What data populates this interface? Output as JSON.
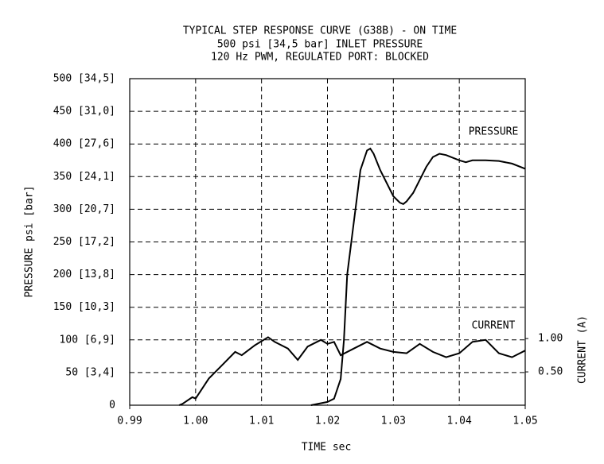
{
  "chart_data": {
    "type": "line",
    "title": "TYPICAL STEP RESPONSE CURVE (G38B) - ON TIME",
    "subtitle": [
      "500 psi [34,5 bar] INLET PRESSURE",
      "120 Hz PWM, REGULATED PORT: BLOCKED"
    ],
    "x_label": "TIME sec",
    "y_label": "PRESSURE psi [bar]",
    "y2_label": "CURRENT (A)",
    "xlim": [
      0.99,
      1.05
    ],
    "xticks": [
      0.99,
      {
        "value": 1,
        "label": "1.00"
      },
      1.01,
      1.02,
      1.03,
      1.04,
      1.05
    ],
    "ylim": [
      0,
      500
    ],
    "yticks": [
      0,
      {
        "value": 50,
        "label": "50 [3,4]"
      },
      {
        "value": 100,
        "label": "100 [6,9]"
      },
      {
        "value": 150,
        "label": "150 [10,3]"
      },
      {
        "value": 200,
        "label": "200 [13,8]"
      },
      {
        "value": 250,
        "label": "250 [17,2]"
      },
      {
        "value": 300,
        "label": "300 [20,7]"
      },
      {
        "value": 350,
        "label": "350 [24,1]"
      },
      {
        "value": 400,
        "label": "400 [27,6]"
      },
      {
        "value": 450,
        "label": "450 [31,0]"
      },
      {
        "value": 500,
        "label": "500 [34,5]"
      }
    ],
    "y2lim": [
      0,
      4.9
    ],
    "y2ticks": [
      {
        "value": 0.5,
        "label": "0.50"
      },
      {
        "value": 1,
        "label": "1.00"
      }
    ],
    "grid": true,
    "series": [
      {
        "name": "PRESSURE",
        "color": "#000000",
        "x": [
          1.0175,
          1.02,
          1.021,
          1.022,
          1.0225,
          1.023,
          1.024,
          1.025,
          1.026,
          1.0265,
          1.027,
          1.028,
          1.03,
          1.031,
          1.0315,
          1.032,
          1.033,
          1.035,
          1.036,
          1.037,
          1.038,
          1.04,
          1.041,
          1.042,
          1.044,
          1.046,
          1.048,
          1.05
        ],
        "values": [
          0,
          5,
          10,
          40,
          100,
          200,
          280,
          360,
          390,
          393,
          385,
          360,
          320,
          310,
          308,
          312,
          325,
          365,
          380,
          385,
          383,
          375,
          372,
          375,
          375,
          374,
          370,
          362
        ]
      },
      {
        "name": "CURRENT",
        "color": "#000000",
        "axis": "y2",
        "x": [
          0.9975,
          0.998,
          0.9995,
          1.0,
          1.002,
          1.004,
          1.006,
          1.007,
          1.009,
          1.011,
          1.012,
          1.014,
          1.0155,
          1.017,
          1.019,
          1.02,
          1.021,
          1.022,
          1.024,
          1.026,
          1.028,
          1.03,
          1.032,
          1.034,
          1.036,
          1.038,
          1.04,
          1.042,
          1.044,
          1.046,
          1.048,
          1.05
        ],
        "values": [
          0,
          0.02,
          0.12,
          0.1,
          0.4,
          0.6,
          0.8,
          0.75,
          0.9,
          1.02,
          0.95,
          0.85,
          0.68,
          0.88,
          0.98,
          0.92,
          0.95,
          0.75,
          0.85,
          0.95,
          0.85,
          0.8,
          0.78,
          0.92,
          0.8,
          0.72,
          0.78,
          0.95,
          0.98,
          0.78,
          0.72,
          0.82
        ]
      }
    ]
  }
}
